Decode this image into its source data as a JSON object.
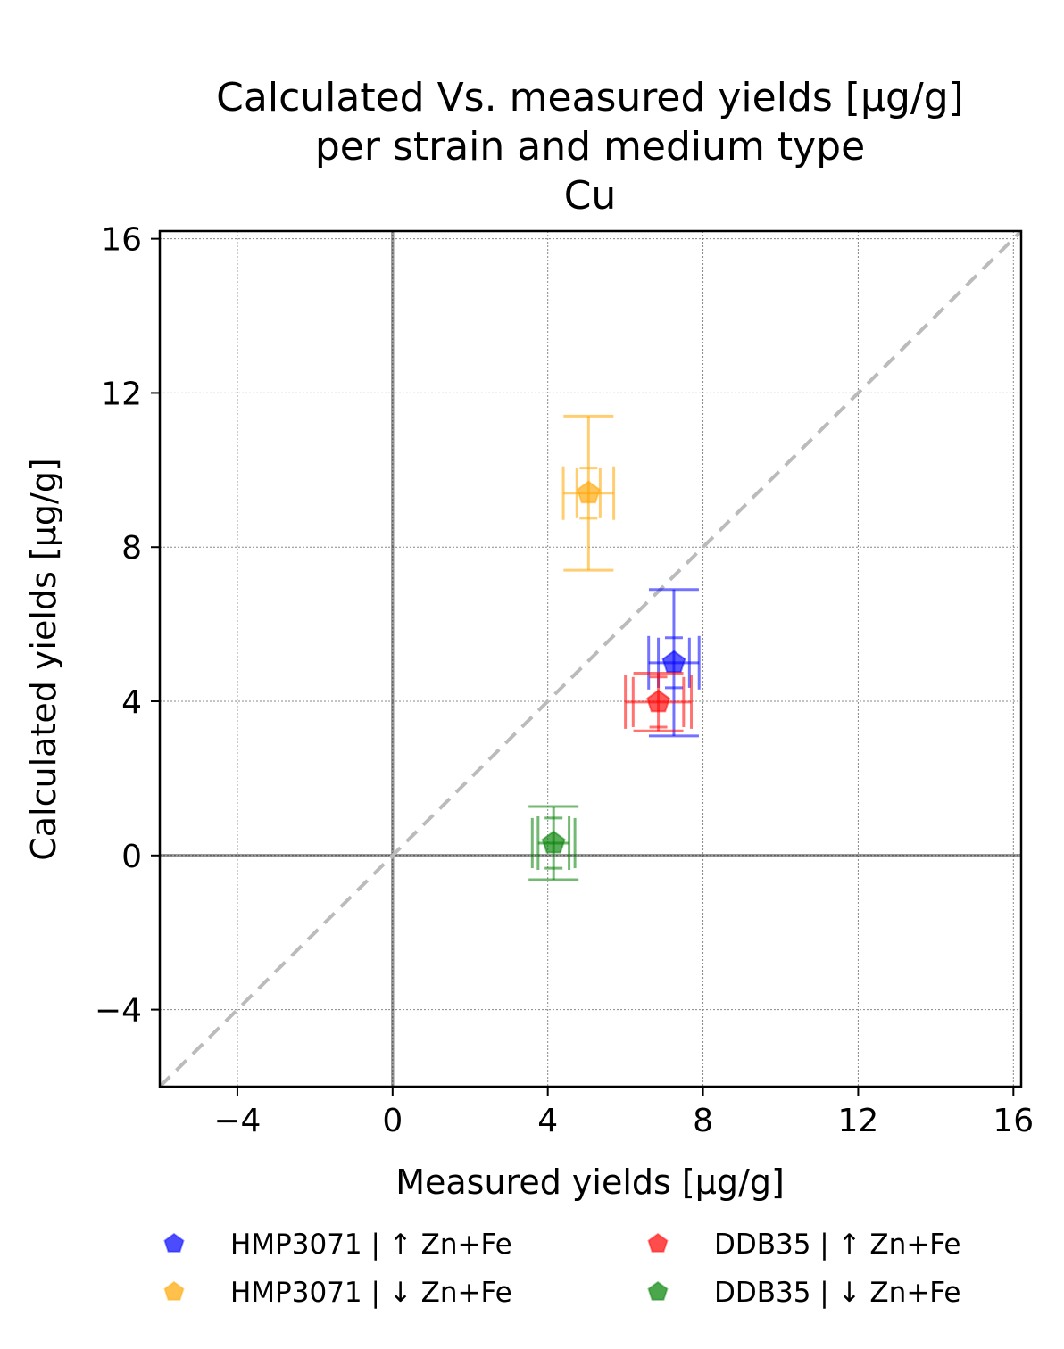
{
  "chart_data": {
    "type": "scatter",
    "title": [
      "Calculated Vs. measured yields [µg/g]",
      "per strain and medium type",
      "Cu"
    ],
    "xlabel": "Measured yields [µg/g]",
    "ylabel": "Calculated yields [µg/g]",
    "xlim": [
      -6,
      16.2
    ],
    "ylim": [
      -6,
      16.2
    ],
    "xticks": [
      -4,
      0,
      4,
      8,
      12,
      16
    ],
    "yticks": [
      -4,
      0,
      4,
      8,
      12,
      16
    ],
    "xtick_labels": [
      "−4",
      "0",
      "4",
      "8",
      "12",
      "16"
    ],
    "ytick_labels": [
      "−4",
      "0",
      "4",
      "8",
      "12",
      "16"
    ],
    "grid": true,
    "reference_line": "y = x (dashed)",
    "legend_placement": "bottom",
    "series": [
      {
        "name": "HMP3071  |  ↑ Zn+Fe",
        "color": "#0000ff",
        "x": 7.25,
        "y": 5.0,
        "x_err_outer": 0.65,
        "y_err_outer": 1.9,
        "x_err_inner": 0.4,
        "y_err_inner": 0.65
      },
      {
        "name": "HMP3071  |  ↓ Zn+Fe",
        "color": "#ffa500",
        "x": 5.05,
        "y": 9.4,
        "x_err_outer": 0.65,
        "y_err_outer": 2.0,
        "x_err_inner": 0.3,
        "y_err_inner": 0.65
      },
      {
        "name": "DDB35  |  ↑ Zn+Fe",
        "color": "#ff0000",
        "x": 6.85,
        "y": 3.98,
        "x_err_outer": 0.85,
        "y_err_outer": 0.75,
        "x_err_inner": 0.65,
        "y_err_inner": 0.65
      },
      {
        "name": "DDB35  |  ↓ Zn+Fe",
        "color": "#008000",
        "x": 4.15,
        "y": 0.32,
        "x_err_outer": 0.4,
        "y_err_outer": 0.95,
        "x_err_inner": 0.55,
        "y_err_inner": 0.65
      }
    ]
  }
}
